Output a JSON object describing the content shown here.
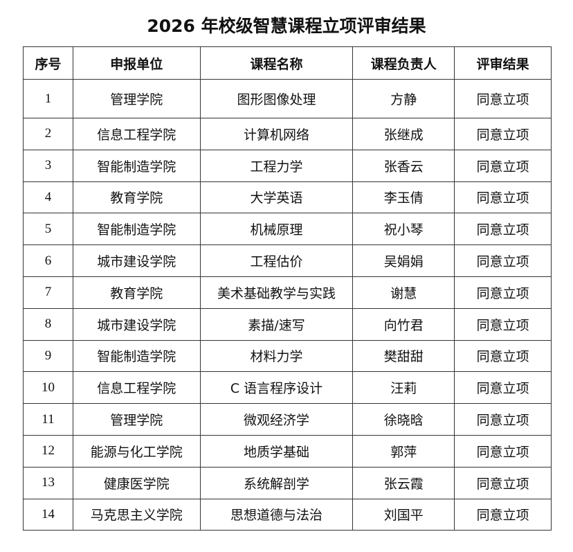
{
  "title": "2026 年校级智慧课程立项评审结果",
  "headers": [
    "序号",
    "申报单位",
    "课程名称",
    "课程负责人",
    "评审结果"
  ],
  "rows": [
    [
      "1",
      "管理学院",
      "图形图像处理",
      "方静",
      "同意立项"
    ],
    [
      "2",
      "信息工程学院",
      "计算机网络",
      "张继成",
      "同意立项"
    ],
    [
      "3",
      "智能制造学院",
      "工程力学",
      "张香云",
      "同意立项"
    ],
    [
      "4",
      "教育学院",
      "大学英语",
      "李玉倩",
      "同意立项"
    ],
    [
      "5",
      "智能制造学院",
      "机械原理",
      "祝小琴",
      "同意立项"
    ],
    [
      "6",
      "城市建设学院",
      "工程估价",
      "吴娟娟",
      "同意立项"
    ],
    [
      "7",
      "教育学院",
      "美术基础教学与实践",
      "谢慧",
      "同意立项"
    ],
    [
      "8",
      "城市建设学院",
      "素描/速写",
      "向竹君",
      "同意立项"
    ],
    [
      "9",
      "智能制造学院",
      "材料力学",
      "樊甜甜",
      "同意立项"
    ],
    [
      "10",
      "信息工程学院",
      "C 语言程序设计",
      "汪莉",
      "同意立项"
    ],
    [
      "11",
      "管理学院",
      "微观经济学",
      "徐晓晗",
      "同意立项"
    ],
    [
      "12",
      "能源与化工学院",
      "地质学基础",
      "郭萍",
      "同意立项"
    ],
    [
      "13",
      "健康医学院",
      "系统解剖学",
      "张云霞",
      "同意立项"
    ],
    [
      "14",
      "马克思主义学院",
      "思想道德与法治",
      "刘国平",
      "同意立项"
    ]
  ]
}
